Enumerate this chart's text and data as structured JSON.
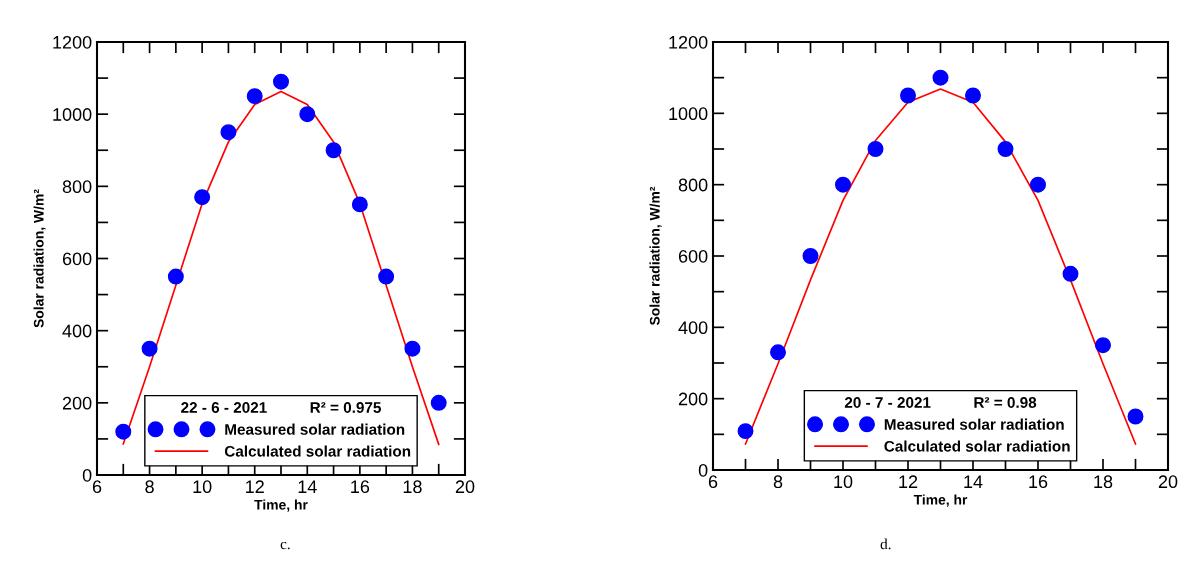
{
  "chart_data": [
    {
      "type": "scatter",
      "xlabel": "Time, hr",
      "ylabel": "Solar radiation, W/m²",
      "legend_title": "22 - 6 - 2021          R² = 0.975",
      "legend": "bottom",
      "x": [
        7,
        8,
        9,
        10,
        11,
        12,
        13,
        14,
        15,
        16,
        17,
        18,
        19
      ],
      "series": [
        {
          "name": "Measured solar radiation",
          "marker": "circle",
          "color": "#0000ff",
          "values": [
            120,
            350,
            550,
            770,
            950,
            1050,
            1090,
            1000,
            900,
            750,
            550,
            350,
            200
          ]
        },
        {
          "name": "Calculated solar radiation",
          "type": "line",
          "color": "#ff0000",
          "values": [
            86,
            300,
            526,
            752,
            923,
            1027,
            1063,
            1027,
            923,
            752,
            526,
            300,
            85
          ]
        }
      ],
      "xlim": [
        6,
        20
      ],
      "ylim": [
        0,
        1200
      ],
      "xticks": [
        6,
        {
          "value": 7,
          "label": null
        },
        8,
        {
          "value": 9,
          "label": null
        },
        10,
        {
          "value": 11,
          "label": null
        },
        12,
        {
          "value": 13,
          "label": null
        },
        14,
        {
          "value": 15,
          "label": null
        },
        16,
        {
          "value": 17,
          "label": null
        },
        18,
        {
          "value": 19,
          "label": null
        },
        20
      ],
      "yticks": [
        0,
        {
          "value": 100,
          "label": null
        },
        200,
        {
          "value": 300,
          "label": null
        },
        400,
        {
          "value": 500,
          "label": null
        },
        600,
        {
          "value": 700,
          "label": null
        },
        800,
        {
          "value": 900,
          "label": null
        },
        1000,
        {
          "value": 1100,
          "label": null
        },
        1200
      ],
      "annotations": [
        "c."
      ]
    },
    {
      "type": "scatter",
      "xlabel": "Time, hr",
      "ylabel": "Solar radiation, W/m²",
      "legend_title": "20 - 7 - 2021          R² = 0.98",
      "legend": "bottom",
      "x": [
        7,
        8,
        9,
        10,
        11,
        12,
        13,
        14,
        15,
        16,
        17,
        18,
        19
      ],
      "series": [
        {
          "name": "Measured solar radiation",
          "marker": "circle",
          "color": "#0000ff",
          "values": [
            109,
            330,
            600,
            800,
            900,
            1050,
            1100,
            1050,
            900,
            800,
            550,
            350,
            150
          ]
        },
        {
          "name": "Calculated solar radiation",
          "type": "line",
          "color": "#ff0000",
          "values": [
            73,
            298,
            533,
            756,
            924,
            1031,
            1068,
            1031,
            920,
            756,
            533,
            298,
            73
          ]
        }
      ],
      "xlim": [
        6,
        20
      ],
      "ylim": [
        0,
        1200
      ],
      "xticks": [
        6,
        {
          "value": 7,
          "label": null
        },
        8,
        {
          "value": 9,
          "label": null
        },
        10,
        {
          "value": 11,
          "label": null
        },
        12,
        {
          "value": 13,
          "label": null
        },
        14,
        {
          "value": 15,
          "label": null
        },
        16,
        {
          "value": 17,
          "label": null
        },
        18,
        {
          "value": 19,
          "label": null
        },
        20
      ],
      "yticks": [
        0,
        {
          "value": 100,
          "label": null
        },
        200,
        {
          "value": 300,
          "label": null
        },
        400,
        {
          "value": 500,
          "label": null
        },
        600,
        {
          "value": 700,
          "label": null
        },
        800,
        {
          "value": 900,
          "label": null
        },
        1000,
        {
          "value": 1100,
          "label": null
        },
        1200
      ],
      "annotations": [
        "d."
      ]
    }
  ]
}
